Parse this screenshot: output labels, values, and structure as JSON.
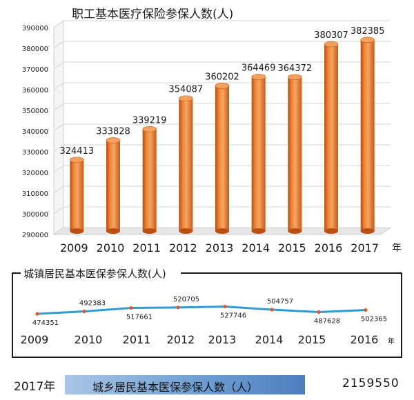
{
  "chart_data": [
    {
      "type": "bar",
      "title": "职工基本医疗保险参保人数(人)",
      "categories": [
        "2009",
        "2010",
        "2011",
        "2012",
        "2013",
        "2014",
        "2015",
        "2016",
        "2017"
      ],
      "values": [
        324413,
        333828,
        339219,
        354087,
        360202,
        364469,
        364372,
        380307,
        382385
      ],
      "value_labels": [
        "324413",
        "333828",
        "339219",
        "354087",
        "360202",
        "364469",
        "364372",
        "380307",
        "382385"
      ],
      "y_ticks": [
        "290000",
        "300000",
        "310000",
        "320000",
        "330000",
        "340000",
        "350000",
        "360000",
        "370000",
        "380000",
        "390000"
      ],
      "ylim": [
        290000,
        390000
      ],
      "x_unit": "年",
      "bar_color": "#e2742a",
      "grid": true
    },
    {
      "type": "line",
      "title": "城镇居民基本医保参保人数(人)",
      "categories": [
        "2009",
        "2010",
        "2011",
        "2012",
        "2013",
        "2014",
        "2015",
        "2016"
      ],
      "values": [
        474351,
        492383,
        517661,
        520705,
        527746,
        504757,
        487628,
        502365
      ],
      "value_labels": [
        "474351",
        "492383",
        "517661",
        "520705",
        "527746",
        "504757",
        "487628",
        "502365"
      ],
      "x_unit": "年",
      "line_color": "#2e9bd6",
      "marker_color": "#e05a2b"
    }
  ],
  "footer": {
    "year": "2017年",
    "label": "城乡居民基本医保参保人数（人）",
    "value": "2159550"
  }
}
